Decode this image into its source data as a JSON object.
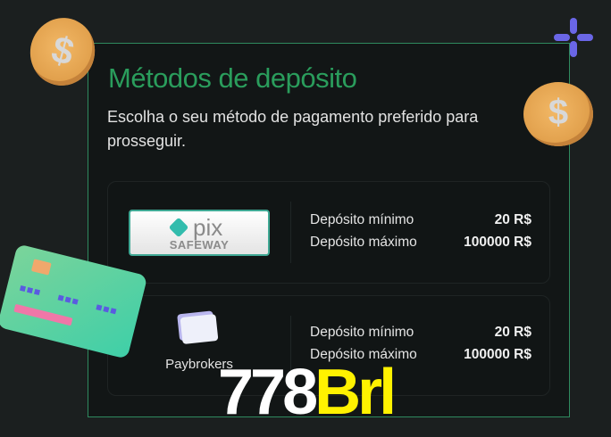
{
  "header": {
    "title": "Métodos de depósito",
    "subtitle": "Escolha o seu método de pagamento preferido para prosseguir."
  },
  "methods": [
    {
      "name": "pix",
      "logo_text": "pix",
      "logo_subtext": "SAFEWAY",
      "min_label": "Depósito mínimo",
      "min_value": "20 R$",
      "max_label": "Depósito máximo",
      "max_value": "100000 R$"
    },
    {
      "name": "Paybrokers",
      "min_label": "Depósito mínimo",
      "min_value": "20 R$",
      "max_label": "Depósito máximo",
      "max_value": "100000 R$"
    }
  ],
  "watermark": {
    "part1": "778",
    "part2": "Brl"
  },
  "colors": {
    "accent": "#2a9d5c",
    "background": "#1b1f1f",
    "panel": "#121616",
    "watermark_yellow": "#fff200"
  },
  "icons": [
    "dollar-coin-icon",
    "sparkle-icon",
    "credit-card-icon",
    "pix-logo",
    "paybrokers-card-icon"
  ]
}
